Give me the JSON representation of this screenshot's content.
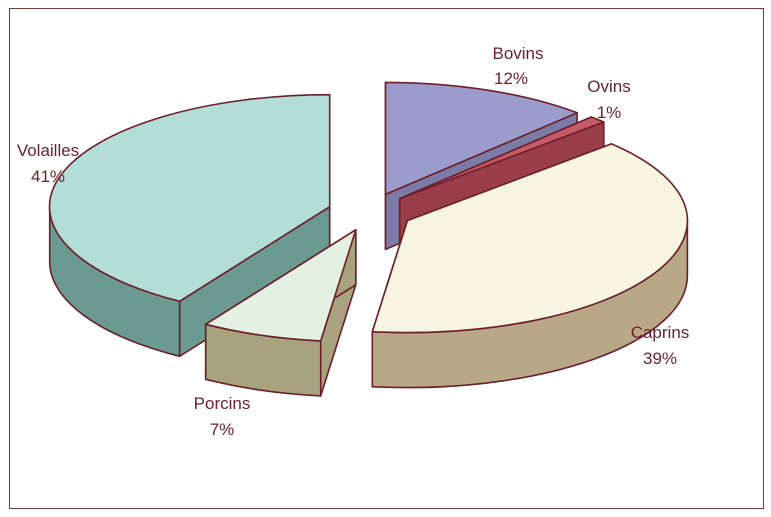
{
  "chart_data": {
    "type": "pie",
    "exploded": true,
    "three_d": true,
    "categories": [
      "Bovins",
      "Ovins",
      "Caprins",
      "Porcins",
      "Volailles"
    ],
    "values": [
      12,
      1,
      39,
      7,
      41
    ],
    "value_labels": [
      "12%",
      "1%",
      "39%",
      "7%",
      "41%"
    ],
    "title": "",
    "legend": "none",
    "colors": {
      "Bovins": {
        "top": "#9c9ccc",
        "side": "#7c7aa6"
      },
      "Ovins": {
        "top": "#c65a66",
        "side": "#9a3e4a"
      },
      "Caprins": {
        "top": "#f8f4e2",
        "side": "#b8a888"
      },
      "Porcins": {
        "top": "#e4f0e2",
        "side": "#a9a27e"
      },
      "Volailles": {
        "top": "#b3ded8",
        "side": "#6a9a90"
      }
    },
    "outline_color": "#6b1f2a"
  }
}
